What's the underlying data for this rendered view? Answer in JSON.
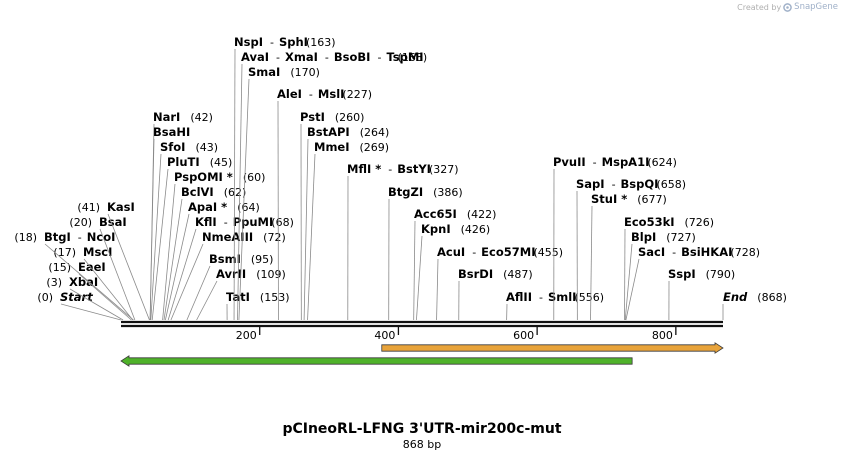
{
  "credit": {
    "text": "Created by",
    "brand": "SnapGene"
  },
  "plasmid": {
    "name": "pCIneoRL-LFNG 3'UTR-mir200c-mut",
    "length_label": "868 bp",
    "length_bp": 868
  },
  "axis": {
    "ticks": [
      200,
      400,
      600,
      800
    ]
  },
  "colors": {
    "forward_feature": "#e8a33a",
    "reverse_feature": "#4fb22a",
    "backbone": "#111111"
  },
  "features": [
    {
      "name": "forward-feature-arrow",
      "direction": "forward",
      "start_bp": 376,
      "end_bp": 868
    },
    {
      "name": "reverse-feature-arrow",
      "direction": "reverse",
      "start_bp": 0,
      "end_bp": 737
    }
  ],
  "sites": [
    {
      "id": "start",
      "label": "Start",
      "pos": "(0)",
      "bp": 0
    },
    {
      "id": "xbai",
      "label": "XbaI",
      "pos": "(3)",
      "bp": 3
    },
    {
      "id": "eaei",
      "label": "EaeI",
      "pos": "(15)",
      "bp": 15
    },
    {
      "id": "msci",
      "label": "MscI",
      "pos": "(17)",
      "bp": 17
    },
    {
      "id": "btgi-ncoi",
      "label": "BtgI",
      "sep": "-",
      "label2": "NcoI",
      "pos": "(18)",
      "bp": 18
    },
    {
      "id": "bsai",
      "label": "BsaI",
      "pos": "(20)",
      "bp": 20
    },
    {
      "id": "kasi",
      "label": "KasI",
      "pos": "(41)",
      "bp": 41
    },
    {
      "id": "nari",
      "label": "NarI",
      "pos": "(42)",
      "bp": 42
    },
    {
      "id": "bsahi",
      "label": "BsaHI",
      "pos": "",
      "bp": 42
    },
    {
      "id": "sfoi",
      "label": "SfoI",
      "pos": "(43)",
      "bp": 43
    },
    {
      "id": "pluti",
      "label": "PluTI",
      "pos": "(45)",
      "bp": 45
    },
    {
      "id": "pspomi",
      "label": "PspOMI *",
      "pos": "(60)",
      "bp": 60
    },
    {
      "id": "bclvi",
      "label": "BclVI",
      "pos": "(62)",
      "bp": 62
    },
    {
      "id": "apai",
      "label": "ApaI *",
      "pos": "(64)",
      "bp": 64
    },
    {
      "id": "kfli-ppumi",
      "label": "KflI",
      "sep": "-",
      "label2": "PpuMI",
      "pos": "(68)",
      "bp": 68
    },
    {
      "id": "nmeaiii",
      "label": "NmeAIII",
      "pos": "(72)",
      "bp": 72
    },
    {
      "id": "bsmi",
      "label": "BsmI",
      "pos": "(95)",
      "bp": 95
    },
    {
      "id": "avrii",
      "label": "AvrII",
      "pos": "(109)",
      "bp": 109
    },
    {
      "id": "tati",
      "label": "TatI",
      "pos": "(153)",
      "bp": 153
    },
    {
      "id": "nspi-sphi",
      "label": "NspI",
      "sep": "-",
      "label2": "SphI",
      "pos": "(163)",
      "bp": 163
    },
    {
      "id": "avai-group",
      "label": "AvaI",
      "sep": "-",
      "label2": "XmaI",
      "sep2": "-",
      "label3": "BsoBI",
      "sep3": "-",
      "label4": "TspMI",
      "pos": "(168)",
      "bp": 168
    },
    {
      "id": "smai",
      "label": "SmaI",
      "pos": "(170)",
      "bp": 170
    },
    {
      "id": "alei-msli",
      "label": "AleI",
      "sep": "-",
      "label2": "MslI",
      "pos": "(227)",
      "bp": 227
    },
    {
      "id": "psti",
      "label": "PstI",
      "pos": "(260)",
      "bp": 260
    },
    {
      "id": "bstapi",
      "label": "BstAPI",
      "pos": "(264)",
      "bp": 264
    },
    {
      "id": "mmei",
      "label": "MmeI",
      "pos": "(269)",
      "bp": 269
    },
    {
      "id": "mfli-bstyi",
      "label": "MflI *",
      "sep": "-",
      "label2": "BstYI",
      "pos": "(327)",
      "bp": 327
    },
    {
      "id": "btgzi",
      "label": "BtgZI",
      "pos": "(386)",
      "bp": 386
    },
    {
      "id": "acc65i",
      "label": "Acc65I",
      "pos": "(422)",
      "bp": 422
    },
    {
      "id": "kpni",
      "label": "KpnI",
      "pos": "(426)",
      "bp": 426
    },
    {
      "id": "acui-eco57mi",
      "label": "AcuI",
      "sep": "-",
      "label2": "Eco57MI",
      "pos": "(455)",
      "bp": 455
    },
    {
      "id": "bsrdi",
      "label": "BsrDI",
      "pos": "(487)",
      "bp": 487
    },
    {
      "id": "aflii-smli",
      "label": "AflII",
      "sep": "-",
      "label2": "SmlI",
      "pos": "(556)",
      "bp": 556
    },
    {
      "id": "pvuii-mspa1i",
      "label": "PvuII",
      "sep": "-",
      "label2": "MspA1I",
      "pos": "(624)",
      "bp": 624
    },
    {
      "id": "sapi-bspqi",
      "label": "SapI",
      "sep": "-",
      "label2": "BspQI",
      "pos": "(658)",
      "bp": 658
    },
    {
      "id": "stui",
      "label": "StuI *",
      "pos": "(677)",
      "bp": 677
    },
    {
      "id": "eco53ki",
      "label": "Eco53kI",
      "pos": "(726)",
      "bp": 726
    },
    {
      "id": "blpi",
      "label": "BlpI",
      "pos": "(727)",
      "bp": 727
    },
    {
      "id": "saci-bsihkai",
      "label": "SacI",
      "sep": "-",
      "label2": "BsiHKAI",
      "pos": "(728)",
      "bp": 728
    },
    {
      "id": "sspi",
      "label": "SspI",
      "pos": "(790)",
      "bp": 790
    },
    {
      "id": "end",
      "label": "End",
      "pos": "(868)",
      "bp": 868
    }
  ]
}
